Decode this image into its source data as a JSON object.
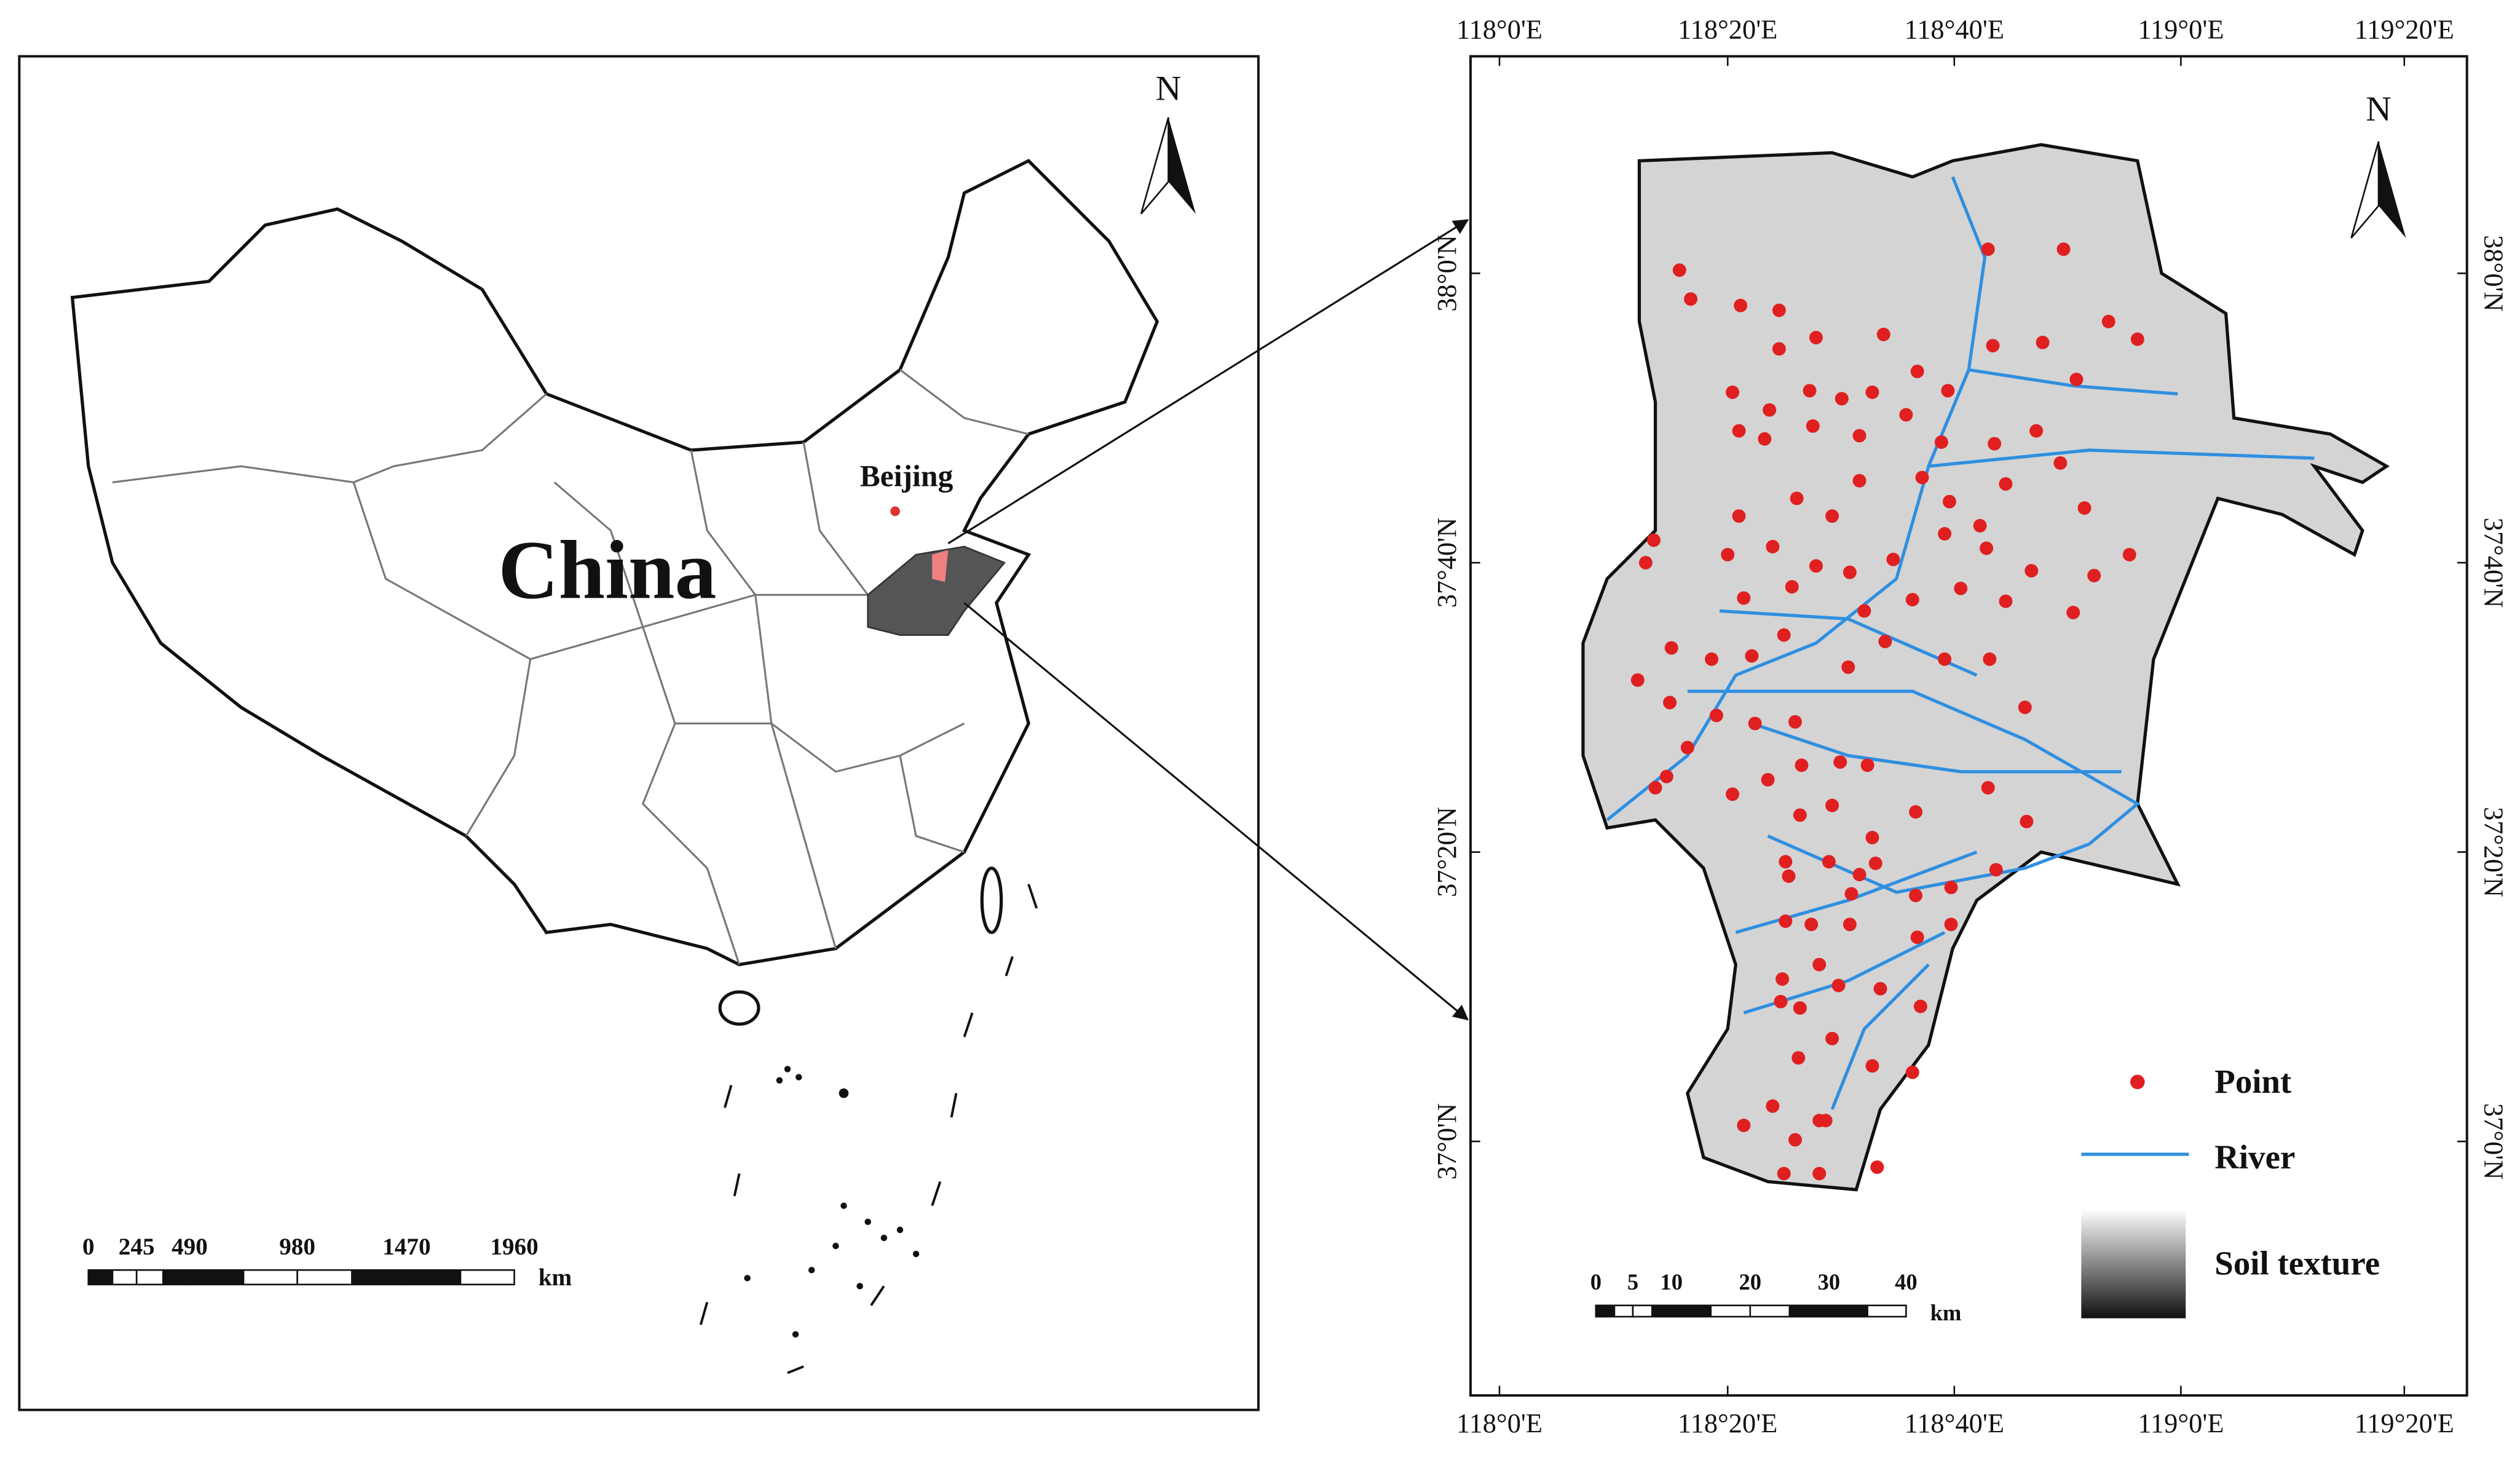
{
  "left_map": {
    "north": "N",
    "country_label": "China",
    "city_label": "Beijing",
    "scale_bar": {
      "labels": [
        "0",
        "245",
        "490",
        "980",
        "1470",
        "1960"
      ],
      "unit": "km"
    }
  },
  "right_map": {
    "north": "N",
    "top_lon_labels": [
      "118°0'E",
      "118°20'E",
      "118°40'E",
      "119°0'E",
      "119°20'E"
    ],
    "bottom_lon_labels": [
      "118°0'E",
      "118°20'E",
      "118°40'E",
      "119°0'E",
      "119°20'E"
    ],
    "left_lat_labels": [
      "38°0'N",
      "37°40'N",
      "37°20'N",
      "37°0'N"
    ],
    "right_lat_labels": [
      "38°0'N",
      "37°40'N",
      "37°20'N",
      "37°0'N"
    ],
    "legend": {
      "point": "Point",
      "river": "River",
      "soil_texture": "Soil texture"
    },
    "scale_bar": {
      "labels": [
        "0",
        "5",
        "10",
        "20",
        "30",
        "40"
      ],
      "unit": "km"
    }
  }
}
